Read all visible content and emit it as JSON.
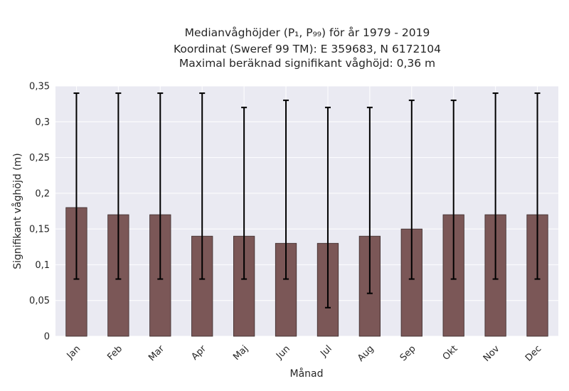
{
  "chart_data": {
    "type": "bar",
    "title_lines": [
      "Medianvåghöjder (P₁, P₉₉) för år 1979 - 2019",
      "Koordinat (Sweref 99 TM): E 359683, N 6172104",
      "Maximal beräknad signifikant våghöjd: 0,36 m"
    ],
    "xlabel": "Månad",
    "ylabel": "Signifikant våghöjd (m)",
    "categories": [
      "Jan",
      "Feb",
      "Mar",
      "Apr",
      "Maj",
      "Jun",
      "Jul",
      "Aug",
      "Sep",
      "Okt",
      "Nov",
      "Dec"
    ],
    "values": [
      0.18,
      0.17,
      0.17,
      0.14,
      0.14,
      0.13,
      0.13,
      0.14,
      0.15,
      0.17,
      0.17,
      0.17
    ],
    "p1": [
      0.08,
      0.08,
      0.08,
      0.08,
      0.08,
      0.08,
      0.04,
      0.06,
      0.08,
      0.08,
      0.08,
      0.08
    ],
    "p99": [
      0.34,
      0.34,
      0.34,
      0.34,
      0.32,
      0.33,
      0.32,
      0.32,
      0.33,
      0.33,
      0.34,
      0.34
    ],
    "ylim": [
      0,
      0.35
    ],
    "yticks": [
      "0",
      "0,05",
      "0,1",
      "0,15",
      "0,2",
      "0,25",
      "0,3",
      "0,35"
    ],
    "grid": true,
    "colors": {
      "bar": "#7b5757",
      "bar_edge": "#3a2a2a",
      "background": "#eaeaf2",
      "grid": "#ffffff",
      "errorbar": "#000000"
    }
  }
}
